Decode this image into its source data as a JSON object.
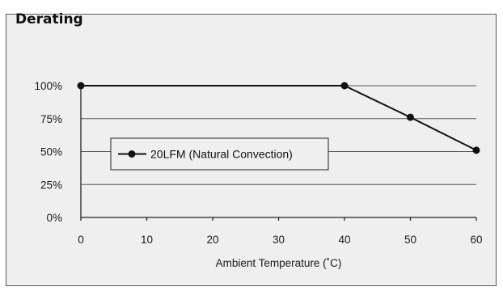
{
  "chart_data": {
    "type": "line",
    "title": "Derating",
    "xlabel": "Ambient Temperature (˚C)",
    "ylabel": "",
    "xlim": [
      0,
      60
    ],
    "ylim": [
      0,
      100
    ],
    "x_ticks": [
      0,
      10,
      20,
      30,
      40,
      50,
      60
    ],
    "x_tick_labels": [
      "0",
      "10",
      "20",
      "30",
      "40",
      "50",
      "60"
    ],
    "y_ticks": [
      0,
      25,
      50,
      75,
      100
    ],
    "y_tick_labels": [
      "0%",
      "25%",
      "50%",
      "75%",
      "100%"
    ],
    "grid": "horizontal",
    "legend_position": "center-left",
    "series": [
      {
        "name": "20LFM (Natural Convection)",
        "color": "#111111",
        "x": [
          0,
          40,
          50,
          60
        ],
        "y": [
          100,
          100,
          76,
          51
        ]
      }
    ]
  },
  "colors": {
    "panel_background": "#efefef",
    "line": "#111111",
    "grid": "#555555"
  }
}
